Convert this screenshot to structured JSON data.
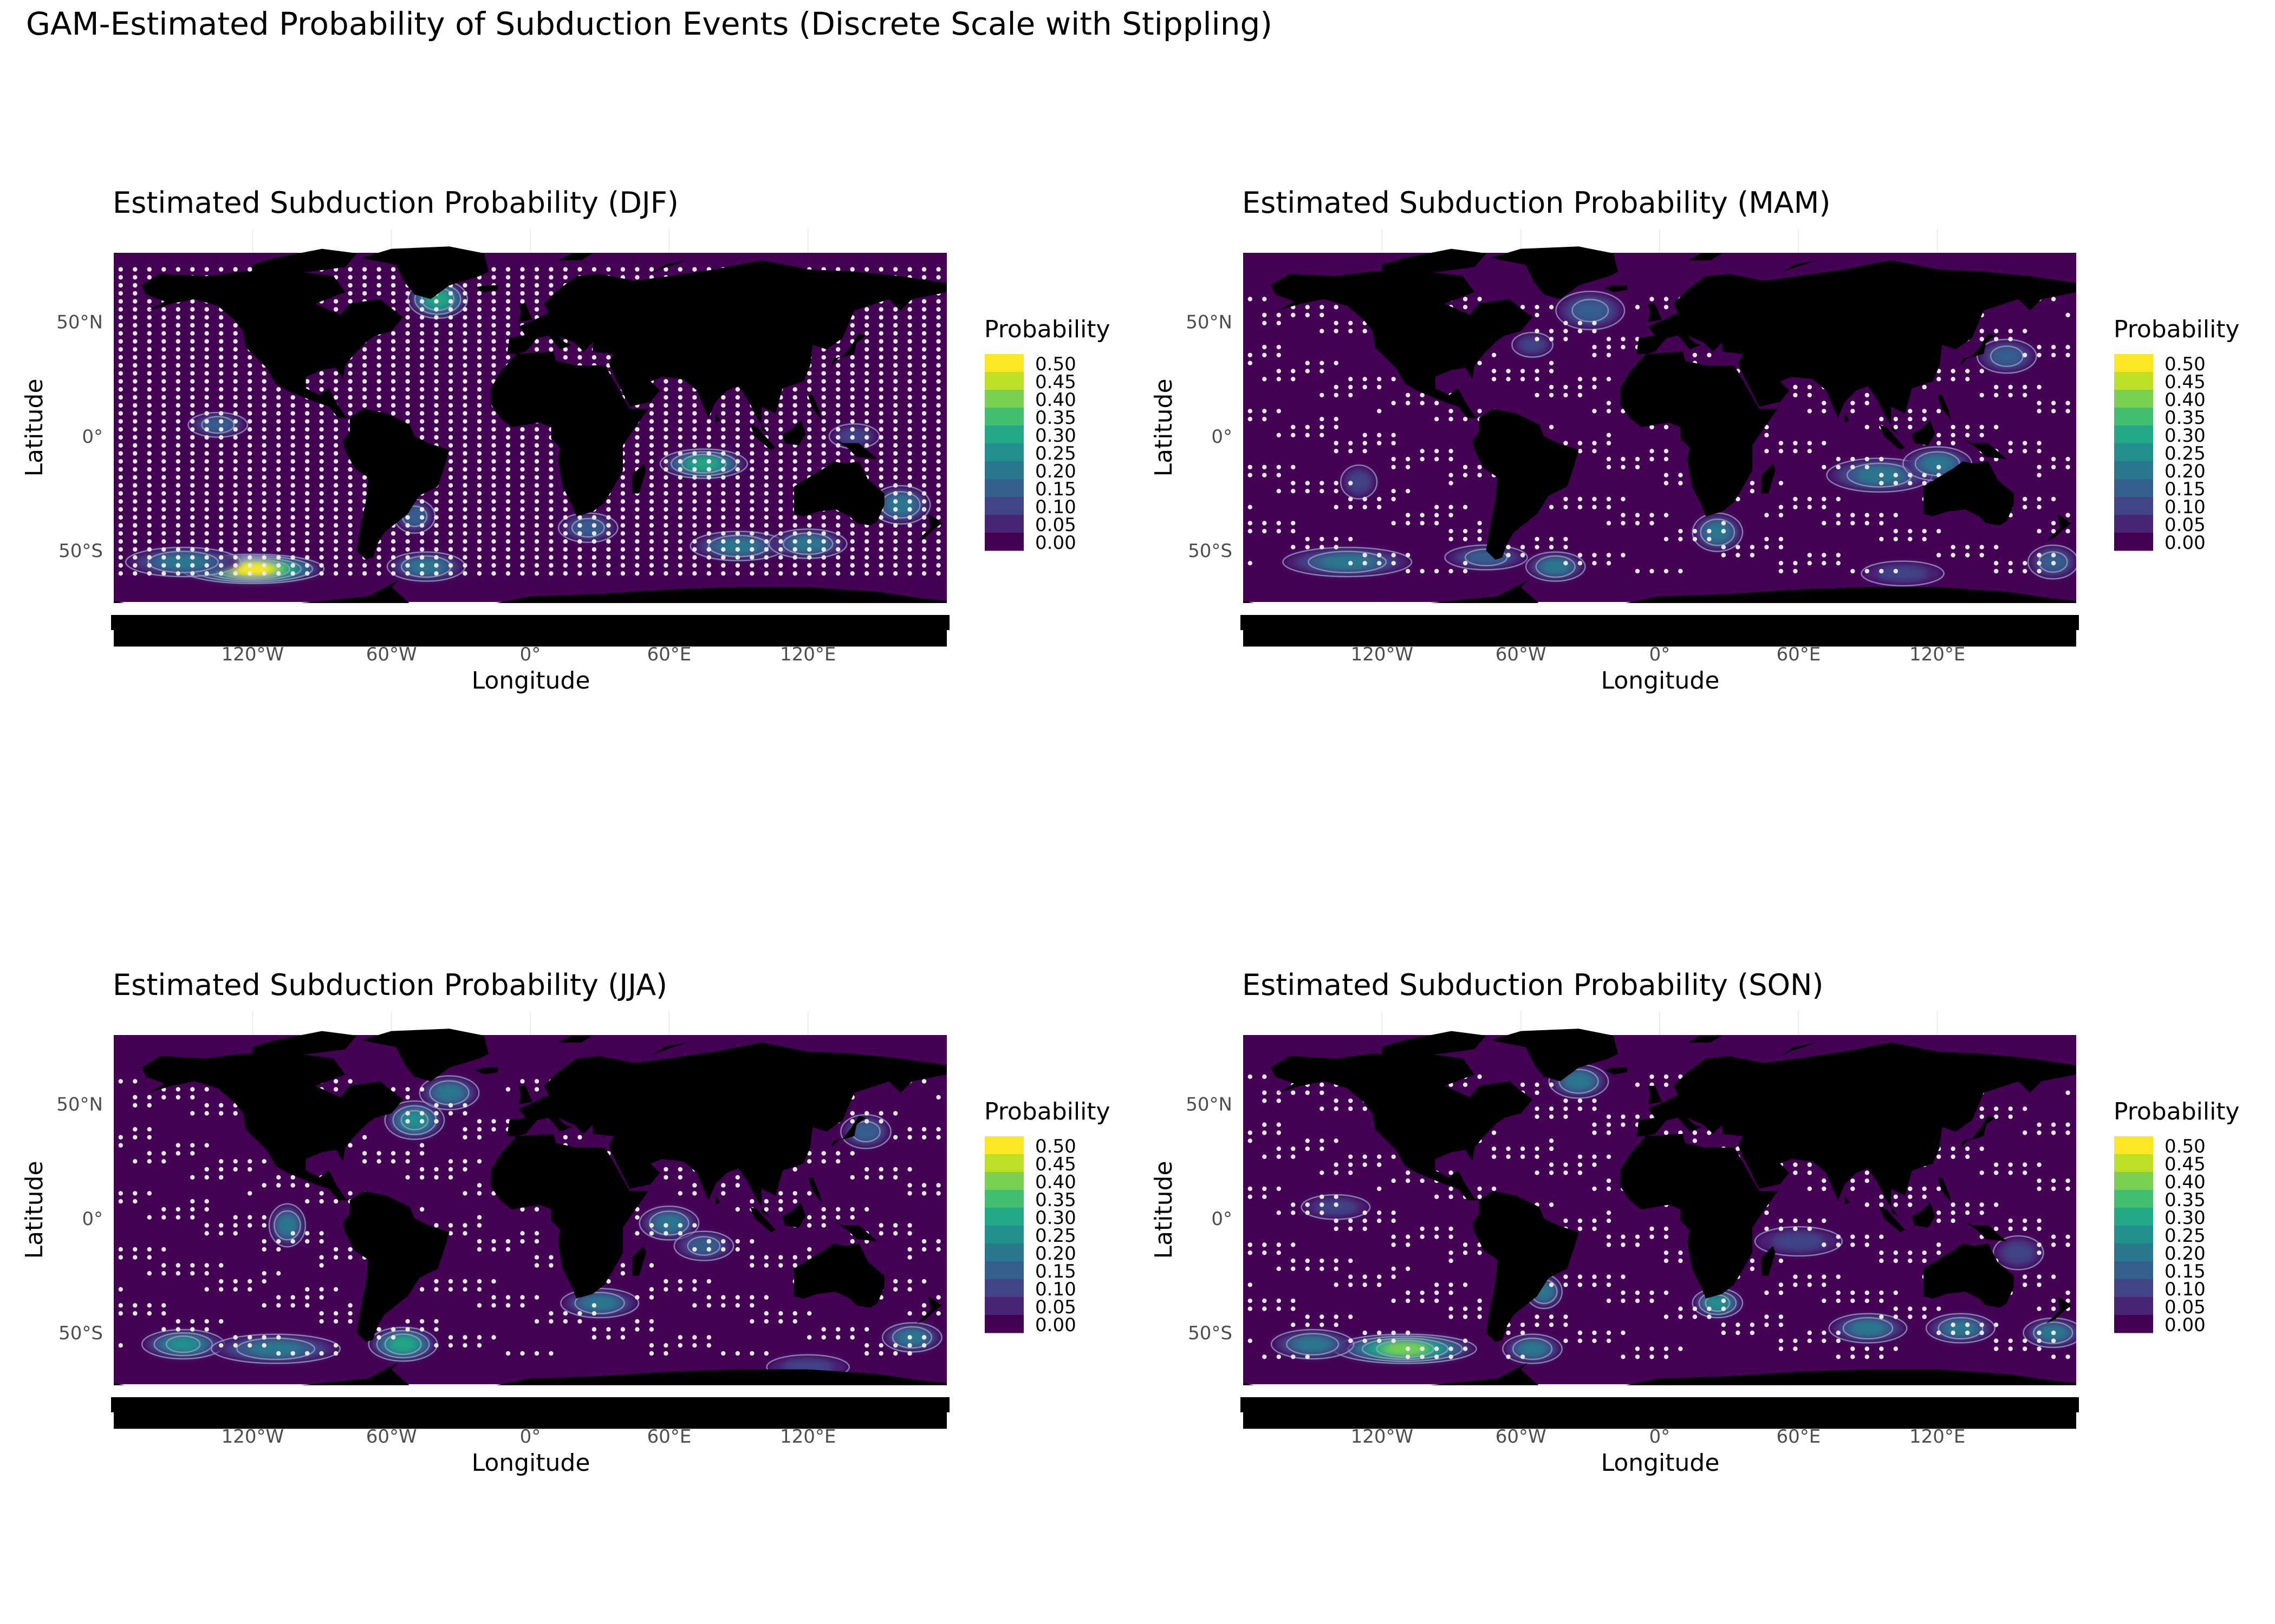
{
  "title": "GAM-Estimated Probability of Subduction Events (Discrete Scale with Stippling)",
  "chart_data": [
    {
      "type": "heatmap",
      "season": "DJF",
      "title": "Estimated Subduction Probability (DJF)",
      "xlabel": "Longitude",
      "ylabel": "Latitude",
      "x_ticks": [
        {
          "value": -120,
          "label": "120°W"
        },
        {
          "value": -60,
          "label": "60°W"
        },
        {
          "value": 0,
          "label": "0°"
        },
        {
          "value": 60,
          "label": "60°E"
        },
        {
          "value": 120,
          "label": "120°E"
        }
      ],
      "y_ticks": [
        {
          "value": 50,
          "label": "50°N"
        },
        {
          "value": 0,
          "label": "0°"
        },
        {
          "value": -50,
          "label": "50°S"
        }
      ],
      "xlim": [
        -180,
        180
      ],
      "ylim": [
        -90,
        80
      ],
      "legend": {
        "title": "Probability",
        "position": "right",
        "levels": [
          "0.50",
          "0.45",
          "0.40",
          "0.35",
          "0.30",
          "0.25",
          "0.20",
          "0.15",
          "0.10",
          "0.05",
          "0.00"
        ]
      },
      "stipple_lat_range": [
        -62,
        73
      ],
      "stipple_density": "dense",
      "hotspots": [
        {
          "lon": -120,
          "lat": -58,
          "prob": 0.48,
          "rx": 28,
          "ry": 4
        },
        {
          "lon": -150,
          "lat": -55,
          "prob": 0.18,
          "rx": 22,
          "ry": 4
        },
        {
          "lon": -45,
          "lat": -57,
          "prob": 0.22,
          "rx": 14,
          "ry": 4
        },
        {
          "lon": -40,
          "lat": 60,
          "prob": 0.28,
          "rx": 10,
          "ry": 6
        },
        {
          "lon": -135,
          "lat": 5,
          "prob": 0.15,
          "rx": 10,
          "ry": 3
        },
        {
          "lon": 75,
          "lat": -12,
          "prob": 0.3,
          "rx": 16,
          "ry": 4
        },
        {
          "lon": 90,
          "lat": -48,
          "prob": 0.22,
          "rx": 18,
          "ry": 4
        },
        {
          "lon": 120,
          "lat": -47,
          "prob": 0.18,
          "rx": 14,
          "ry": 4
        },
        {
          "lon": 25,
          "lat": -40,
          "prob": 0.15,
          "rx": 10,
          "ry": 4
        },
        {
          "lon": -50,
          "lat": -35,
          "prob": 0.15,
          "rx": 6,
          "ry": 5
        },
        {
          "lon": 160,
          "lat": -30,
          "prob": 0.18,
          "rx": 10,
          "ry": 6
        },
        {
          "lon": 140,
          "lat": 0,
          "prob": 0.12,
          "rx": 8,
          "ry": 3
        }
      ]
    },
    {
      "type": "heatmap",
      "season": "MAM",
      "title": "Estimated Subduction Probability (MAM)",
      "xlabel": "Longitude",
      "ylabel": "Latitude",
      "x_ticks": [
        {
          "value": -120,
          "label": "120°W"
        },
        {
          "value": -60,
          "label": "60°W"
        },
        {
          "value": 0,
          "label": "0°"
        },
        {
          "value": 60,
          "label": "60°E"
        },
        {
          "value": 120,
          "label": "120°E"
        }
      ],
      "y_ticks": [
        {
          "value": 50,
          "label": "50°N"
        },
        {
          "value": 0,
          "label": "0°"
        },
        {
          "value": -50,
          "label": "50°S"
        }
      ],
      "xlim": [
        -180,
        180
      ],
      "ylim": [
        -90,
        80
      ],
      "legend": {
        "title": "Probability",
        "position": "right",
        "levels": [
          "0.50",
          "0.45",
          "0.40",
          "0.35",
          "0.30",
          "0.25",
          "0.20",
          "0.15",
          "0.10",
          "0.05",
          "0.00"
        ]
      },
      "stipple_lat_range": [
        -62,
        60
      ],
      "stipple_density": "sparse",
      "hotspots": [
        {
          "lon": -135,
          "lat": -55,
          "prob": 0.2,
          "rx": 25,
          "ry": 4
        },
        {
          "lon": -75,
          "lat": -53,
          "prob": 0.15,
          "rx": 15,
          "ry": 3
        },
        {
          "lon": -45,
          "lat": -57,
          "prob": 0.18,
          "rx": 10,
          "ry": 4
        },
        {
          "lon": -30,
          "lat": 55,
          "prob": 0.15,
          "rx": 12,
          "ry": 6
        },
        {
          "lon": -55,
          "lat": 40,
          "prob": 0.12,
          "rx": 6,
          "ry": 3
        },
        {
          "lon": 25,
          "lat": -42,
          "prob": 0.2,
          "rx": 8,
          "ry": 6
        },
        {
          "lon": 95,
          "lat": -17,
          "prob": 0.2,
          "rx": 20,
          "ry": 5
        },
        {
          "lon": 120,
          "lat": -12,
          "prob": 0.22,
          "rx": 12,
          "ry": 5
        },
        {
          "lon": 150,
          "lat": 35,
          "prob": 0.15,
          "rx": 10,
          "ry": 5
        },
        {
          "lon": 170,
          "lat": -55,
          "prob": 0.15,
          "rx": 8,
          "ry": 5
        },
        {
          "lon": -130,
          "lat": -20,
          "prob": 0.12,
          "rx": 5,
          "ry": 5
        },
        {
          "lon": 105,
          "lat": -60,
          "prob": 0.12,
          "rx": 15,
          "ry": 3
        }
      ]
    },
    {
      "type": "heatmap",
      "season": "JJA",
      "title": "Estimated Subduction Probability (JJA)",
      "xlabel": "Longitude",
      "ylabel": "Latitude",
      "x_ticks": [
        {
          "value": -120,
          "label": "120°W"
        },
        {
          "value": -60,
          "label": "60°W"
        },
        {
          "value": 0,
          "label": "0°"
        },
        {
          "value": 60,
          "label": "60°E"
        },
        {
          "value": 120,
          "label": "120°E"
        }
      ],
      "y_ticks": [
        {
          "value": 50,
          "label": "50°N"
        },
        {
          "value": 0,
          "label": "0°"
        },
        {
          "value": -50,
          "label": "50°S"
        }
      ],
      "xlim": [
        -180,
        180
      ],
      "ylim": [
        -90,
        80
      ],
      "legend": {
        "title": "Probability",
        "position": "right",
        "levels": [
          "0.50",
          "0.45",
          "0.40",
          "0.35",
          "0.30",
          "0.25",
          "0.20",
          "0.15",
          "0.10",
          "0.05",
          "0.00"
        ]
      },
      "stipple_lat_range": [
        -62,
        60
      ],
      "stipple_density": "sparse",
      "hotspots": [
        {
          "lon": -150,
          "lat": -55,
          "prob": 0.25,
          "rx": 15,
          "ry": 4
        },
        {
          "lon": -110,
          "lat": -57,
          "prob": 0.22,
          "rx": 25,
          "ry": 4
        },
        {
          "lon": -55,
          "lat": -55,
          "prob": 0.3,
          "rx": 12,
          "ry": 5
        },
        {
          "lon": -50,
          "lat": 43,
          "prob": 0.25,
          "rx": 10,
          "ry": 6
        },
        {
          "lon": -35,
          "lat": 55,
          "prob": 0.22,
          "rx": 10,
          "ry": 5
        },
        {
          "lon": -105,
          "lat": -3,
          "prob": 0.2,
          "rx": 5,
          "ry": 7
        },
        {
          "lon": 30,
          "lat": -37,
          "prob": 0.18,
          "rx": 14,
          "ry": 4
        },
        {
          "lon": 60,
          "lat": -2,
          "prob": 0.2,
          "rx": 10,
          "ry": 5
        },
        {
          "lon": 75,
          "lat": -12,
          "prob": 0.15,
          "rx": 10,
          "ry": 4
        },
        {
          "lon": 165,
          "lat": -52,
          "prob": 0.2,
          "rx": 10,
          "ry": 4
        },
        {
          "lon": 145,
          "lat": 38,
          "prob": 0.15,
          "rx": 8,
          "ry": 5
        },
        {
          "lon": 120,
          "lat": -65,
          "prob": 0.12,
          "rx": 15,
          "ry": 3
        }
      ]
    },
    {
      "type": "heatmap",
      "season": "SON",
      "title": "Estimated Subduction Probability (SON)",
      "xlabel": "Longitude",
      "ylabel": "Latitude",
      "x_ticks": [
        {
          "value": -120,
          "label": "120°W"
        },
        {
          "value": -60,
          "label": "60°W"
        },
        {
          "value": 0,
          "label": "0°"
        },
        {
          "value": 60,
          "label": "60°E"
        },
        {
          "value": 120,
          "label": "120°E"
        }
      ],
      "y_ticks": [
        {
          "value": 50,
          "label": "50°N"
        },
        {
          "value": 0,
          "label": "0°"
        },
        {
          "value": -50,
          "label": "50°S"
        }
      ],
      "xlim": [
        -180,
        180
      ],
      "ylim": [
        -90,
        80
      ],
      "legend": {
        "title": "Probability",
        "position": "right",
        "levels": [
          "0.50",
          "0.45",
          "0.40",
          "0.35",
          "0.30",
          "0.25",
          "0.20",
          "0.15",
          "0.10",
          "0.05",
          "0.00"
        ]
      },
      "stipple_lat_range": [
        -62,
        62
      ],
      "stipple_density": "sparse",
      "hotspots": [
        {
          "lon": -110,
          "lat": -57,
          "prob": 0.42,
          "rx": 28,
          "ry": 4
        },
        {
          "lon": -150,
          "lat": -55,
          "prob": 0.18,
          "rx": 15,
          "ry": 4
        },
        {
          "lon": -55,
          "lat": -57,
          "prob": 0.22,
          "rx": 10,
          "ry": 4
        },
        {
          "lon": -50,
          "lat": -32,
          "prob": 0.2,
          "rx": 5,
          "ry": 5
        },
        {
          "lon": -35,
          "lat": 60,
          "prob": 0.2,
          "rx": 10,
          "ry": 5
        },
        {
          "lon": 25,
          "lat": -37,
          "prob": 0.25,
          "rx": 8,
          "ry": 4
        },
        {
          "lon": 90,
          "lat": -48,
          "prob": 0.18,
          "rx": 14,
          "ry": 4
        },
        {
          "lon": 130,
          "lat": -48,
          "prob": 0.18,
          "rx": 12,
          "ry": 4
        },
        {
          "lon": 170,
          "lat": -50,
          "prob": 0.2,
          "rx": 10,
          "ry": 4
        },
        {
          "lon": 60,
          "lat": -10,
          "prob": 0.12,
          "rx": 16,
          "ry": 4
        },
        {
          "lon": -140,
          "lat": 5,
          "prob": 0.12,
          "rx": 12,
          "ry": 3
        },
        {
          "lon": 155,
          "lat": -15,
          "prob": 0.12,
          "rx": 8,
          "ry": 5
        }
      ]
    }
  ],
  "colors": {
    "palette": [
      "#440154",
      "#482475",
      "#414487",
      "#355f8d",
      "#2a788e",
      "#21908d",
      "#22a884",
      "#42be71",
      "#7ad151",
      "#bddf26",
      "#fde725"
    ],
    "land": "#000000",
    "stipple": "#e8e8e8",
    "contour": "#9aa6c8"
  }
}
